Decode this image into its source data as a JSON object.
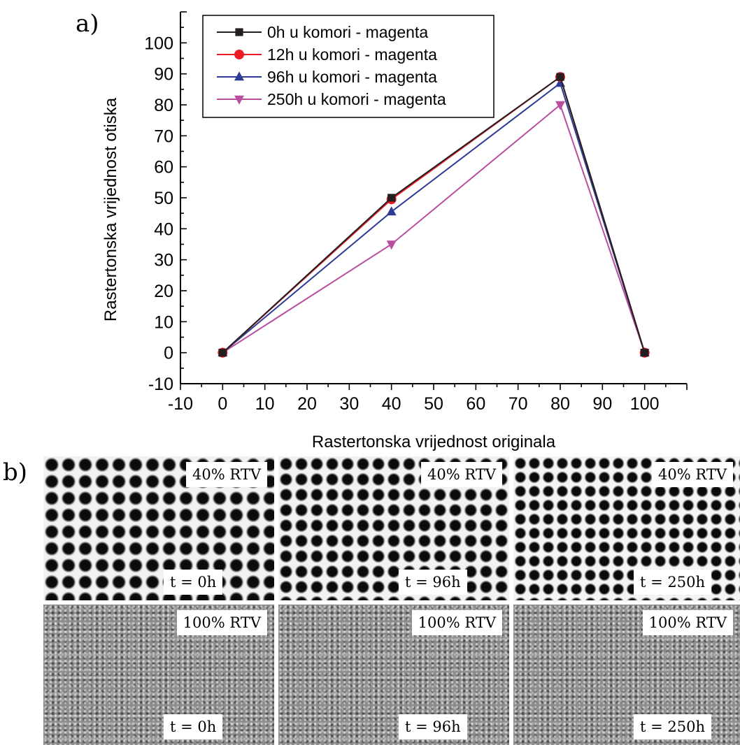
{
  "panel_labels": {
    "a": "a)",
    "b": "b)"
  },
  "chart_data": {
    "type": "line",
    "xlabel": "Rastertonska vrijednost originala",
    "ylabel": "Rastertonska vrijednost otiska",
    "xlim": [
      -10,
      110
    ],
    "ylim": [
      -10,
      110
    ],
    "x_ticks": [
      -10,
      0,
      10,
      20,
      30,
      40,
      50,
      60,
      70,
      80,
      90,
      100
    ],
    "y_ticks": [
      -10,
      0,
      10,
      20,
      30,
      40,
      50,
      60,
      70,
      80,
      90,
      100
    ],
    "x": [
      0,
      40,
      80,
      100
    ],
    "series": [
      {
        "name": "0h u komori - magenta",
        "values": [
          0,
          50,
          89,
          0
        ],
        "color": "#231f20",
        "marker": "square"
      },
      {
        "name": "12h u komori - magenta",
        "values": [
          0,
          49.5,
          89,
          0
        ],
        "color": "#ed1c24",
        "marker": "circle"
      },
      {
        "name": "96h u komori - magenta",
        "values": [
          0,
          45.5,
          87,
          0
        ],
        "color": "#2e3c96",
        "marker": "triangle-up"
      },
      {
        "name": "250h u komori - magenta",
        "values": [
          0,
          35,
          80,
          0
        ],
        "color": "#b94fa0",
        "marker": "triangle-down"
      }
    ],
    "legend_position": "top-left",
    "grid": false
  },
  "micrographs": {
    "columns": [
      {
        "rows": [
          {
            "rtv": "40% RTV",
            "time": "t = 0h"
          },
          {
            "rtv": "100% RTV",
            "time": "t = 0h"
          }
        ]
      },
      {
        "rows": [
          {
            "rtv": "40% RTV",
            "time": "t = 96h"
          },
          {
            "rtv": "100% RTV",
            "time": "t = 96h"
          }
        ]
      },
      {
        "rows": [
          {
            "rtv": "40% RTV",
            "time": "t = 250h"
          },
          {
            "rtv": "100% RTV",
            "time": "t = 250h"
          }
        ]
      }
    ]
  }
}
